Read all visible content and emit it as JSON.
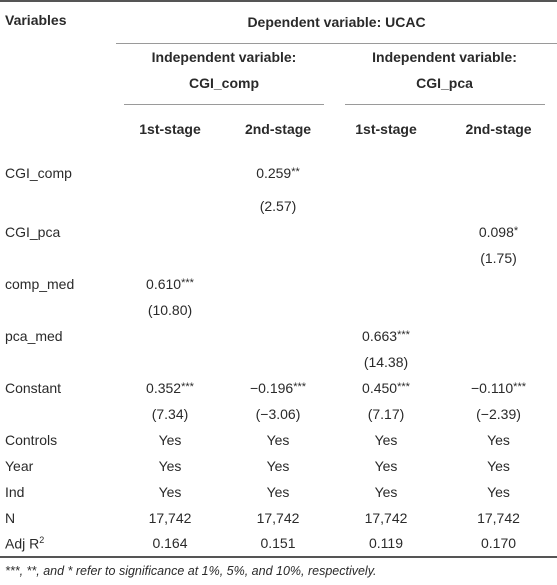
{
  "header": {
    "variables": "Variables",
    "dependent": "Dependent variable: UCAC",
    "group1_line1": "Independent variable:",
    "group1_line2": "CGI_comp",
    "group2_line1": "Independent variable:",
    "group2_line2": "CGI_pca",
    "stage1": "1st-stage",
    "stage2": "2nd-stage",
    "stage3": "1st-stage",
    "stage4": "2nd-stage"
  },
  "rows": [
    {
      "label": "CGI_comp",
      "cells": [
        "",
        "0.259**",
        "",
        ""
      ],
      "t": [
        "",
        "(2.57)",
        "",
        ""
      ]
    },
    {
      "label": "CGI_pca",
      "cells": [
        "",
        "",
        "",
        "0.098*"
      ],
      "t": [
        "",
        "",
        "",
        "(1.75)"
      ]
    },
    {
      "label": "comp_med",
      "cells": [
        "0.610***",
        "",
        "",
        ""
      ],
      "t": [
        "(10.80)",
        "",
        "",
        ""
      ]
    },
    {
      "label": "pca_med",
      "cells": [
        "",
        "",
        "0.663***",
        ""
      ],
      "t": [
        "",
        "",
        "(14.38)",
        ""
      ]
    },
    {
      "label": "Constant",
      "cells": [
        "0.352***",
        "−0.196***",
        "0.450***",
        "−0.110***"
      ],
      "t": [
        "(7.34)",
        "(−3.06)",
        "(7.17)",
        "(−2.39)"
      ]
    }
  ],
  "summary": [
    {
      "label": "Controls",
      "cells": [
        "Yes",
        "Yes",
        "Yes",
        "Yes"
      ]
    },
    {
      "label": "Year",
      "cells": [
        "Yes",
        "Yes",
        "Yes",
        "Yes"
      ]
    },
    {
      "label": "Ind",
      "cells": [
        "Yes",
        "Yes",
        "Yes",
        "Yes"
      ]
    },
    {
      "label": "N",
      "cells": [
        "17,742",
        "17,742",
        "17,742",
        "17,742"
      ]
    },
    {
      "label_main": "Adj R",
      "label_sup": "2",
      "cells": [
        "0.164",
        "0.151",
        "0.119",
        "0.170"
      ]
    }
  ],
  "note": "***, **, and * refer to significance at 1%, 5%, and 10%, respectively."
}
